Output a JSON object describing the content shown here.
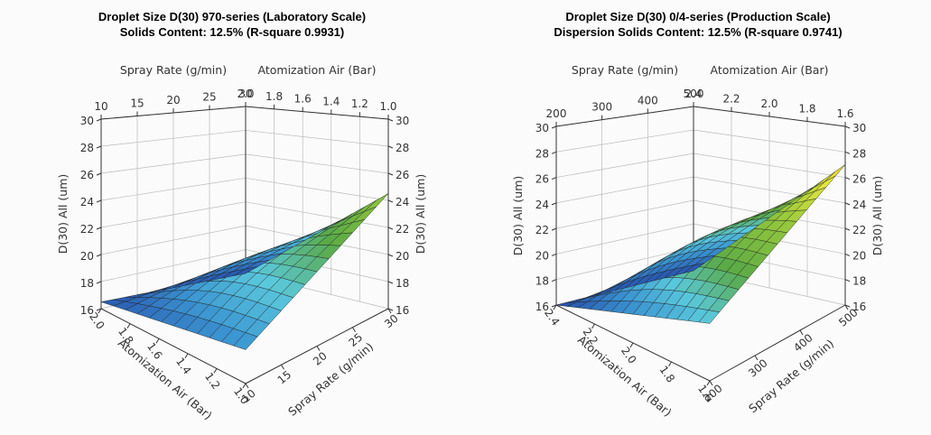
{
  "chart_data": [
    {
      "type": "surface3d",
      "title": "Droplet Size D(30) 970-series (Laboratory Scale)",
      "subtitle": "Solids Content: 12.5% (R-square 0.9931)",
      "top_spray_label": "Spray Rate (g/min)",
      "top_air_label": "Atomization Air (Bar)",
      "bottom_spray_label": "Spray Rate (g/min)",
      "bottom_air_label": "Atomization Air (Bar)",
      "zlabel": "D(30) All (um)",
      "spray_ticks": [
        "10",
        "15",
        "20",
        "25",
        "30"
      ],
      "air_ticks": [
        "2.0",
        "1.8",
        "1.6",
        "1.4",
        "1.2",
        "1.0"
      ],
      "bottom_air_ticks": [
        "2.0",
        "1.8",
        "1.6",
        "1.4",
        "1.2",
        "1.0"
      ],
      "z_ticks": [
        "16",
        "18",
        "20",
        "22",
        "24",
        "26",
        "28",
        "30"
      ],
      "spray_range": [
        10,
        30
      ],
      "air_range": [
        1.0,
        2.0
      ],
      "zlim": [
        16,
        30
      ],
      "corner_values": {
        "low_spray_high_air": 16.5,
        "high_spray_high_air": 16.0,
        "low_spray_low_air": 18.5,
        "high_spray_low_air": 24.5
      }
    },
    {
      "type": "surface3d",
      "title": "Droplet Size D(30) 0/4-series (Production Scale)",
      "subtitle": "Dispersion Solids Content: 12.5% (R-square 0.9741)",
      "top_spray_label": "Spray Rate (g/min)",
      "top_air_label": "Atomization Air (Bar)",
      "bottom_spray_label": "Spray Rate (g/min)",
      "bottom_air_label": "Atomization Air (Bar)",
      "zlabel": "D(30) All (um)",
      "spray_ticks": [
        "200",
        "300",
        "400",
        "500"
      ],
      "air_ticks": [
        "2.4",
        "2.2",
        "2.0",
        "1.8",
        "1.6"
      ],
      "bottom_air_ticks": [
        "2.4",
        "2.2",
        "2.0",
        "1.8",
        "1.6"
      ],
      "z_ticks": [
        "16",
        "18",
        "20",
        "22",
        "24",
        "26",
        "28",
        "30"
      ],
      "spray_range": [
        200,
        500
      ],
      "air_range": [
        1.6,
        2.4
      ],
      "zlim": [
        16,
        30
      ],
      "corner_values": {
        "low_spray_high_air": 16.0,
        "high_spray_high_air": 16.0,
        "low_spray_low_air": 20.5,
        "high_spray_low_air": 27.0
      }
    }
  ]
}
